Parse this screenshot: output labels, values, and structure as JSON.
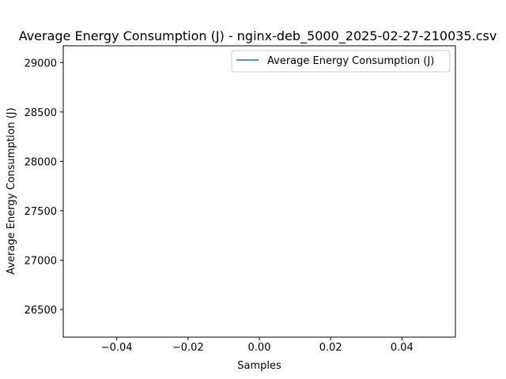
{
  "chart_data": {
    "type": "line",
    "title": "Average Energy Consumption (J) - nginx-deb_5000_2025-02-27-210035.csv",
    "xlabel": "Samples",
    "ylabel": "Average Energy Consumption (J)",
    "xlim": [
      -0.055,
      0.055
    ],
    "ylim": [
      26220,
      29170
    ],
    "x_ticks": [
      -0.04,
      -0.02,
      0.0,
      0.02,
      0.04
    ],
    "x_tick_labels": [
      "−0.04",
      "−0.02",
      "0.00",
      "0.02",
      "0.04"
    ],
    "y_ticks": [
      26500,
      27000,
      27500,
      28000,
      28500,
      29000
    ],
    "y_tick_labels": [
      "26500",
      "27000",
      "27500",
      "28000",
      "28500",
      "29000"
    ],
    "grid": false,
    "legend_position": "upper-right",
    "series": [
      {
        "name": "Average Energy Consumption (J)",
        "color": "#1f77b4",
        "x": [],
        "y": []
      }
    ]
  }
}
